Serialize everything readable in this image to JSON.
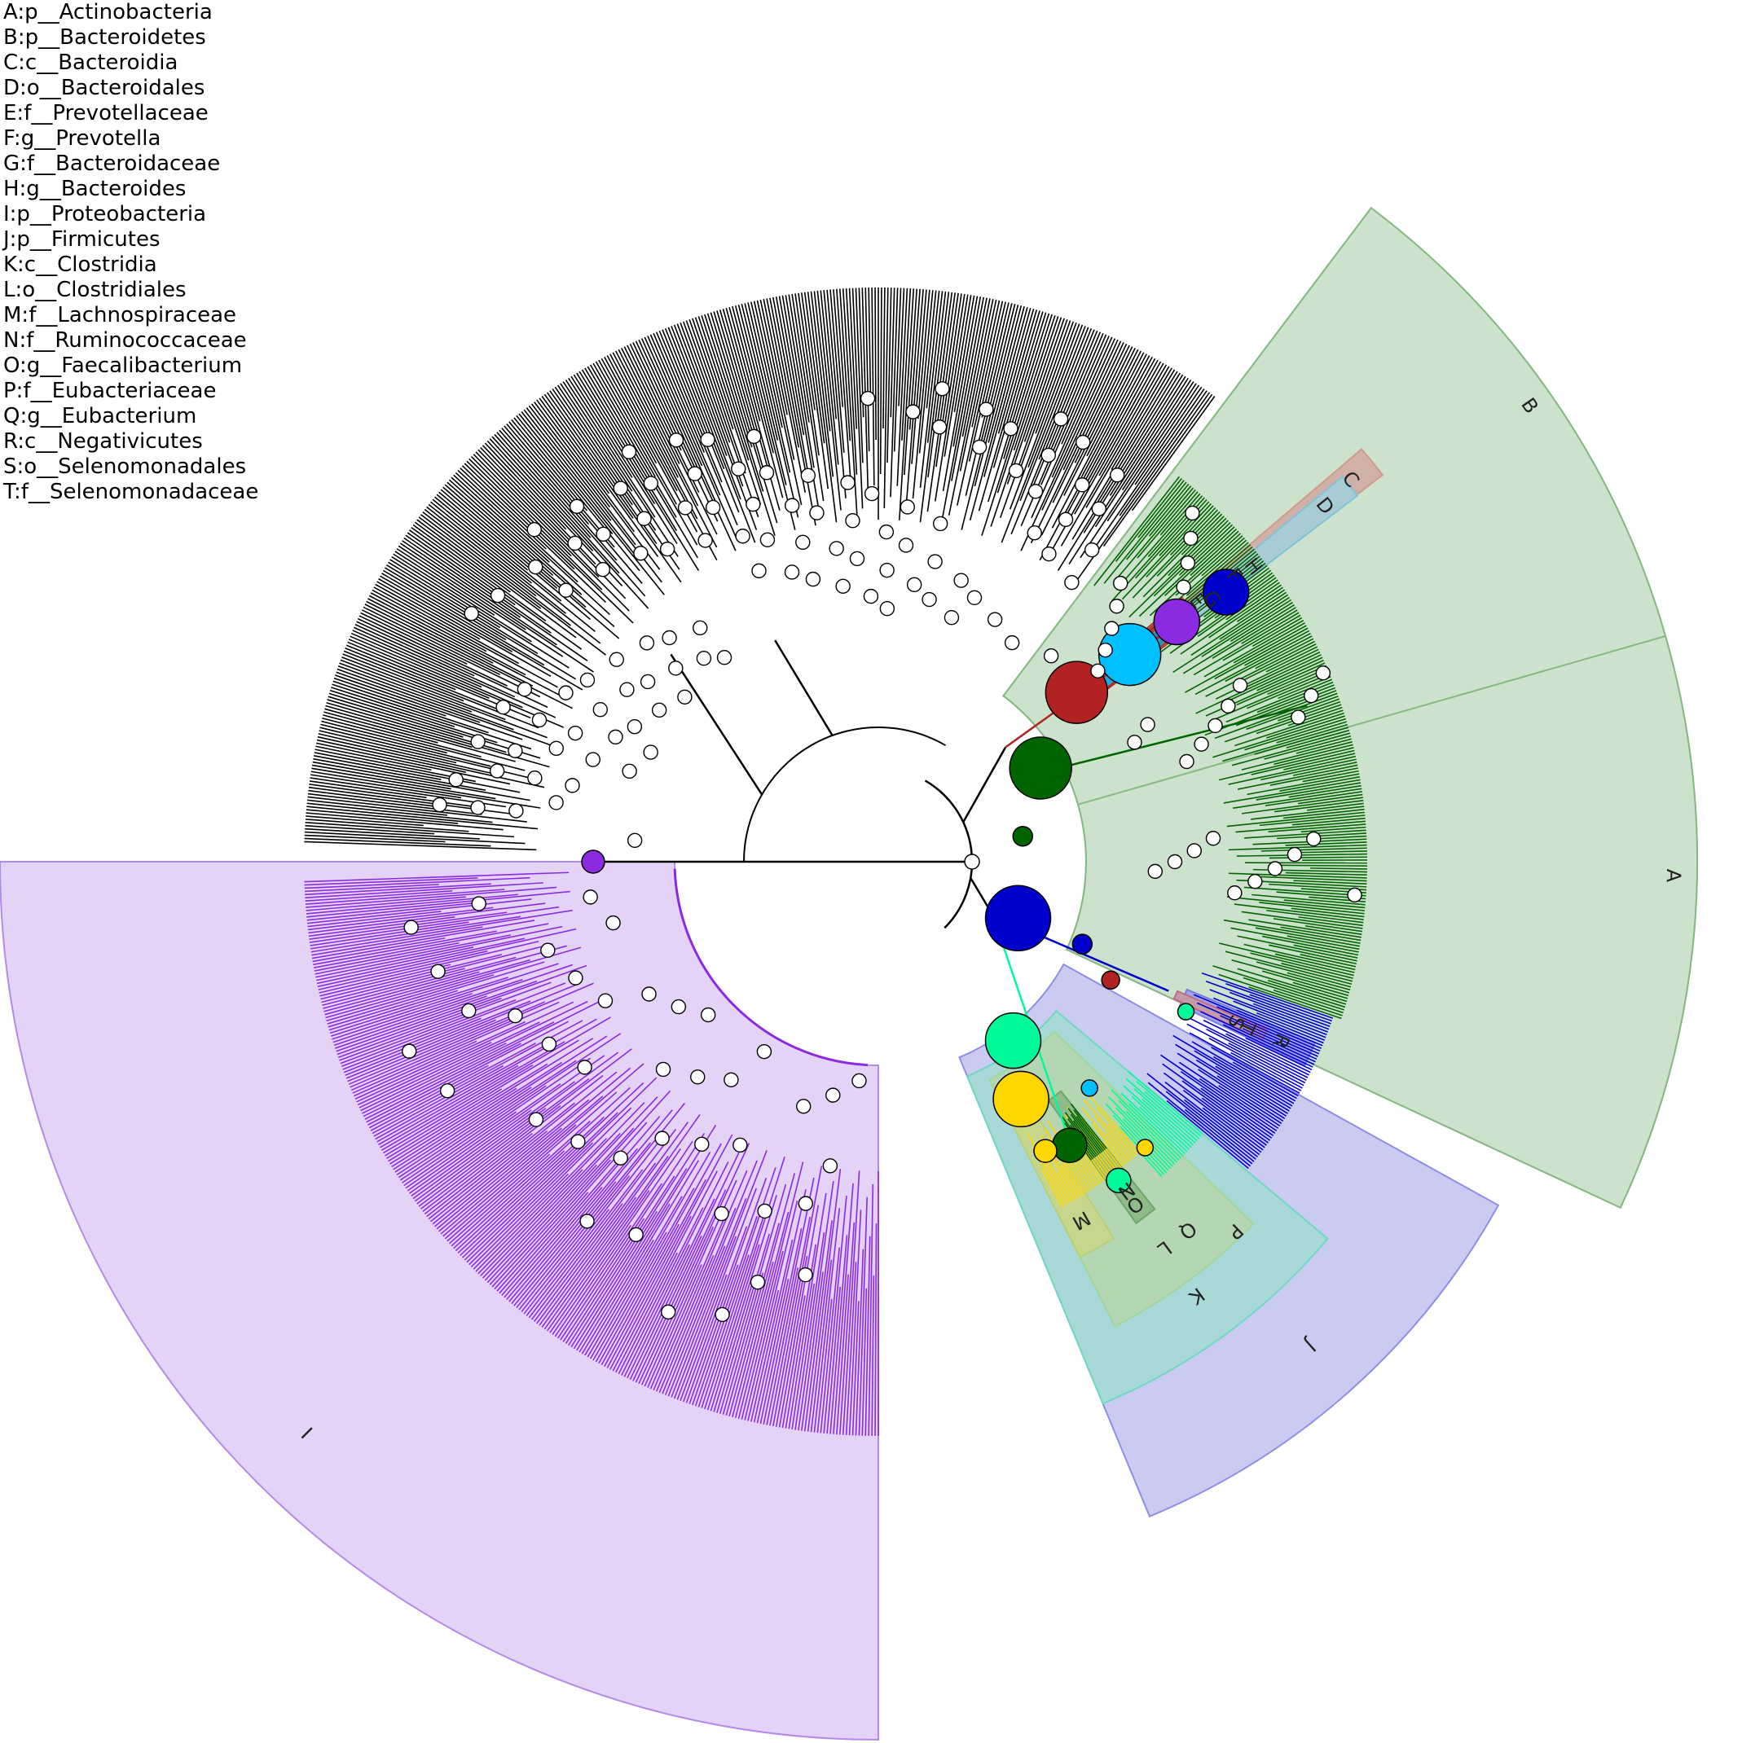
{
  "legend": [
    {
      "key": "A",
      "taxon": "p__Actinobacteria"
    },
    {
      "key": "B",
      "taxon": "p__Bacteroidetes"
    },
    {
      "key": "C",
      "taxon": "c__Bacteroidia"
    },
    {
      "key": "D",
      "taxon": "o__Bacteroidales"
    },
    {
      "key": "E",
      "taxon": "f__Prevotellaceae"
    },
    {
      "key": "F",
      "taxon": "g__Prevotella"
    },
    {
      "key": "G",
      "taxon": "f__Bacteroidaceae"
    },
    {
      "key": "H",
      "taxon": "g__Bacteroides"
    },
    {
      "key": "I",
      "taxon": "p__Proteobacteria"
    },
    {
      "key": "J",
      "taxon": "p__Firmicutes"
    },
    {
      "key": "K",
      "taxon": "c__Clostridia"
    },
    {
      "key": "L",
      "taxon": "o__Clostridiales"
    },
    {
      "key": "M",
      "taxon": "f__Lachnospiraceae"
    },
    {
      "key": "N",
      "taxon": "f__Ruminococcaceae"
    },
    {
      "key": "O",
      "taxon": "g__Faecalibacterium"
    },
    {
      "key": "P",
      "taxon": "f__Eubacteriaceae"
    },
    {
      "key": "Q",
      "taxon": "g__Eubacterium"
    },
    {
      "key": "R",
      "taxon": "c__Negativicutes"
    },
    {
      "key": "S",
      "taxon": "o__Selenomonadales"
    },
    {
      "key": "T",
      "taxon": "f__Selenomonadaceae"
    }
  ],
  "colors": {
    "actinobacteria": "#006400",
    "bacteroidia": "#b22222",
    "bacteroidales": "#00bfff",
    "prevotellaceae": "#8a2be2",
    "bacteroides": "#0000cd",
    "proteobacteria": "#8a2be2",
    "firmicutes": "#0000cd",
    "clostridia": "#00fa9a",
    "lachnospiraceae": "#ffd700",
    "ruminococcaceae": "#006400",
    "negativicutes": "#b22222",
    "unassigned": "#000000"
  }
}
